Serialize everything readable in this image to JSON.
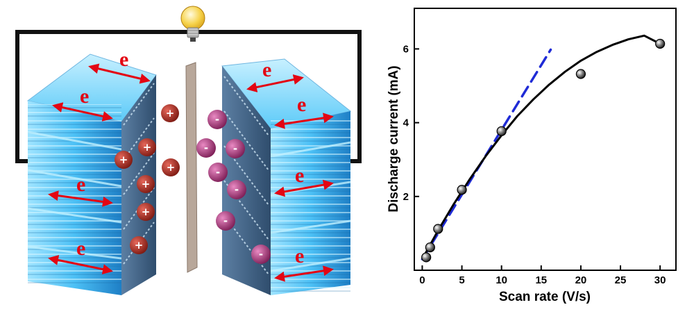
{
  "illustration": {
    "electron_label": "e",
    "positive_sign": "+",
    "negative_sign": "-",
    "colors": {
      "circuit": "#111111",
      "electrode_light": "#7fd6ff",
      "electrode_dark": "#1e7fc6",
      "arrow": "#e30613",
      "cation": "#a3281f",
      "anion": "#b0347c",
      "separator": "#b8a79a",
      "bulb": "#f6d24a"
    },
    "icons": [
      "light-bulb-icon",
      "separator-membrane",
      "electrode-stack"
    ]
  },
  "chart_data": {
    "type": "scatter",
    "xlabel": "Scan rate (V/s)",
    "ylabel": "Discharge current (mA)",
    "xlim": [
      -1,
      32
    ],
    "ylim": [
      0,
      7.1
    ],
    "xticks": [
      0,
      5,
      10,
      15,
      20,
      25,
      30
    ],
    "yticks": [
      2,
      4,
      6
    ],
    "grid": false,
    "legend": "none",
    "series": [
      {
        "kind": "points",
        "marker": "sphere",
        "color": "#111111",
        "x": [
          0.5,
          1,
          2,
          5,
          10,
          20,
          30
        ],
        "y": [
          0.35,
          0.62,
          1.12,
          2.18,
          3.77,
          5.32,
          6.14
        ]
      },
      {
        "kind": "fit-curve",
        "color": "#000000",
        "style": "solid",
        "x": [
          0,
          2,
          4,
          6,
          8,
          10,
          12,
          14,
          16,
          18,
          20,
          22,
          24,
          26,
          28,
          30
        ],
        "y": [
          0.3,
          1.08,
          1.8,
          2.47,
          3.09,
          3.66,
          4.18,
          4.63,
          5.03,
          5.38,
          5.68,
          5.92,
          6.11,
          6.26,
          6.36,
          6.14
        ]
      },
      {
        "kind": "linear-fit",
        "color": "#1f2bd6",
        "style": "dashed",
        "x": [
          0,
          16.2
        ],
        "y": [
          0.3,
          5.98
        ]
      }
    ]
  }
}
